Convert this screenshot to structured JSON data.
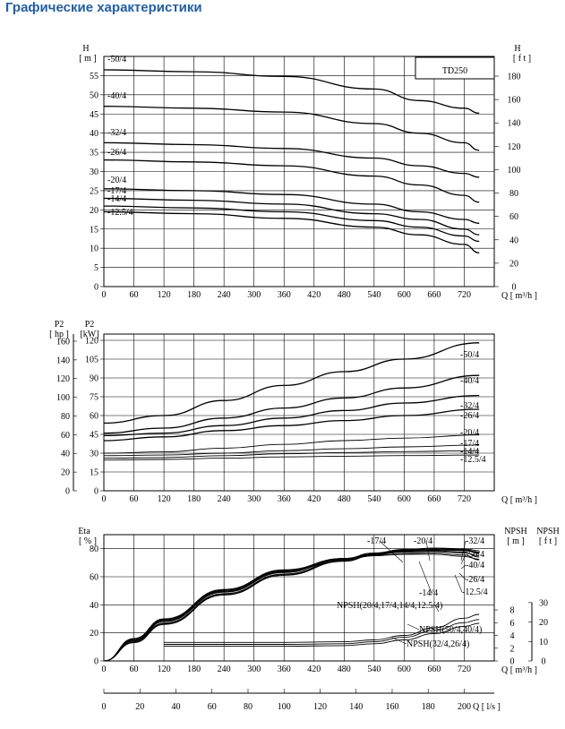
{
  "page": {
    "title": "Графические характеристики"
  },
  "chart_data": [
    {
      "type": "line",
      "model_label": "TD250",
      "x_axis": {
        "unit_label": "Q  [ m³/h ]",
        "range": [
          0,
          780
        ],
        "ticks": [
          0,
          60,
          120,
          180,
          240,
          300,
          360,
          420,
          480,
          540,
          600,
          660,
          720
        ]
      },
      "y_left": {
        "name": "H",
        "unit": "[ m ]",
        "range": [
          0,
          60
        ],
        "ticks": [
          0,
          5,
          10,
          15,
          20,
          25,
          30,
          35,
          40,
          45,
          50,
          55
        ]
      },
      "y_right": {
        "name": "H",
        "unit": "[ f t ]",
        "ticks": [
          0,
          20,
          40,
          60,
          80,
          100,
          120,
          140,
          160,
          180
        ]
      },
      "series": [
        {
          "name": "-50/4",
          "x": [
            0,
            180,
            360,
            540,
            630,
            720,
            750
          ],
          "y": [
            56.5,
            56.0,
            54.8,
            51.5,
            48.5,
            46.5,
            45.2
          ]
        },
        {
          "name": "-40/4",
          "x": [
            0,
            180,
            360,
            540,
            630,
            720,
            750
          ],
          "y": [
            47,
            46.5,
            45.5,
            42.5,
            40,
            37.5,
            35.5
          ]
        },
        {
          "name": "-32/4",
          "x": [
            0,
            180,
            360,
            540,
            630,
            720,
            750
          ],
          "y": [
            37.5,
            37,
            36,
            33.5,
            31.5,
            29.5,
            28.5
          ]
        },
        {
          "name": "-26/4",
          "x": [
            0,
            180,
            360,
            540,
            630,
            720,
            750
          ],
          "y": [
            33,
            32.5,
            31.5,
            28.8,
            26.5,
            23.8,
            22
          ]
        },
        {
          "name": "-20/4",
          "x": [
            0,
            180,
            360,
            540,
            630,
            720,
            750
          ],
          "y": [
            25.5,
            25,
            24,
            21.5,
            19.5,
            17.5,
            16.5
          ]
        },
        {
          "name": "-17/4",
          "x": [
            0,
            180,
            360,
            540,
            630,
            720,
            750
          ],
          "y": [
            23,
            22.5,
            21.5,
            19,
            17.5,
            15,
            13.5
          ]
        },
        {
          "name": "-14/4",
          "x": [
            0,
            180,
            360,
            540,
            630,
            720,
            750
          ],
          "y": [
            21,
            20.5,
            19.5,
            17.2,
            15.5,
            13.2,
            11.8
          ]
        },
        {
          "name": "-12.5/4",
          "x": [
            0,
            180,
            360,
            540,
            630,
            720,
            750
          ],
          "y": [
            19.5,
            19,
            17.8,
            15.5,
            13.5,
            11,
            8.8
          ]
        }
      ]
    },
    {
      "type": "line",
      "x_axis": {
        "unit_label": "Q  [ m³/h ]",
        "range": [
          0,
          780
        ],
        "ticks": [
          0,
          60,
          120,
          180,
          240,
          300,
          360,
          420,
          480,
          540,
          600,
          660,
          720
        ]
      },
      "y_left_outer": {
        "name": "P2",
        "unit": "[ hp ]",
        "ticks": [
          0,
          20,
          40,
          60,
          80,
          100,
          120,
          140,
          160
        ]
      },
      "y_left": {
        "name": "P2",
        "unit": "[kW]",
        "range": [
          0,
          125
        ],
        "ticks": [
          0,
          15,
          30,
          45,
          60,
          75,
          90,
          105,
          120
        ]
      },
      "series": [
        {
          "name": "-50/4",
          "x": [
            0,
            120,
            240,
            360,
            480,
            600,
            750
          ],
          "y": [
            54,
            60,
            72,
            84,
            95,
            105,
            118
          ]
        },
        {
          "name": "-40/4",
          "x": [
            0,
            120,
            240,
            360,
            480,
            600,
            750
          ],
          "y": [
            46,
            50,
            58,
            66,
            74,
            82,
            92
          ]
        },
        {
          "name": "-32/4",
          "x": [
            0,
            120,
            240,
            360,
            480,
            600,
            750
          ],
          "y": [
            44,
            46,
            52,
            58,
            64,
            70,
            76
          ]
        },
        {
          "name": "-26/4",
          "x": [
            0,
            120,
            240,
            360,
            480,
            600,
            750
          ],
          "y": [
            40,
            43,
            48,
            52,
            56,
            60,
            65
          ]
        },
        {
          "name": "-20/4",
          "x": [
            0,
            120,
            240,
            360,
            480,
            600,
            750
          ],
          "y": [
            30,
            31,
            34,
            37,
            40,
            42,
            44.5
          ]
        },
        {
          "name": "-17/4",
          "x": [
            0,
            120,
            240,
            360,
            480,
            600,
            750
          ],
          "y": [
            28,
            28.5,
            30,
            32,
            33.5,
            35,
            36.5
          ]
        },
        {
          "name": "-14/4",
          "x": [
            0,
            120,
            240,
            360,
            480,
            600,
            750
          ],
          "y": [
            26,
            26.5,
            28,
            29.5,
            30.5,
            31.2,
            32
          ]
        },
        {
          "name": "-12.5/4",
          "x": [
            0,
            120,
            240,
            360,
            480,
            600,
            750
          ],
          "y": [
            24.5,
            25,
            26,
            27,
            27.6,
            28.1,
            28.5
          ]
        }
      ]
    },
    {
      "type": "line",
      "x_axis": {
        "unit_label": "Q  [ m³/h ]",
        "range": [
          0,
          780
        ],
        "ticks": [
          0,
          60,
          120,
          180,
          240,
          300,
          360,
          420,
          480,
          540,
          600,
          660,
          720
        ]
      },
      "x_axis_secondary": {
        "unit_label": "Q  [ l/s ]",
        "ticks": [
          0,
          20,
          40,
          60,
          80,
          100,
          120,
          140,
          160,
          180,
          200
        ]
      },
      "y_left": {
        "name": "Eta",
        "unit": "[ % ]",
        "range": [
          0,
          90
        ],
        "ticks": [
          0,
          20,
          40,
          60,
          80
        ]
      },
      "y_right_inner": {
        "name": "NPSH",
        "unit": "[ m ]",
        "ticks": [
          0,
          2,
          4,
          6,
          8
        ]
      },
      "y_right_outer": {
        "name": "NPSH",
        "unit": "[ f t ]",
        "ticks": [
          0,
          10,
          20,
          30
        ]
      },
      "series": [
        {
          "name": "-17/4",
          "x": [
            0,
            60,
            120,
            240,
            360,
            480,
            540,
            600,
            660,
            720,
            750
          ],
          "y": [
            0,
            16,
            30,
            51,
            65,
            73,
            76,
            77.5,
            78,
            77,
            75
          ]
        },
        {
          "name": "-20/4",
          "x": [
            0,
            60,
            120,
            240,
            360,
            480,
            540,
            600,
            660,
            720,
            750
          ],
          "y": [
            0,
            15,
            29,
            50,
            64,
            73,
            76.5,
            78.5,
            79,
            78.5,
            77
          ]
        },
        {
          "name": "-32/4",
          "x": [
            0,
            60,
            120,
            240,
            360,
            480,
            540,
            600,
            660,
            720,
            750
          ],
          "y": [
            0,
            14,
            28,
            49,
            63,
            73,
            77,
            79.5,
            80.5,
            80,
            78.5
          ]
        },
        {
          "name": "-50/4",
          "x": [
            0,
            60,
            120,
            240,
            360,
            480,
            540,
            600,
            660,
            720,
            750
          ],
          "y": [
            0,
            13.5,
            27,
            48,
            62,
            72,
            76.5,
            79,
            80,
            79.5,
            77.5
          ]
        },
        {
          "name": "-40/4",
          "x": [
            0,
            60,
            120,
            240,
            360,
            480,
            540,
            600,
            660,
            720,
            750
          ],
          "y": [
            0,
            13,
            26.5,
            47.5,
            61.5,
            71.5,
            76,
            78.5,
            79.5,
            79,
            76.5
          ]
        },
        {
          "name": "-26/4",
          "x": [
            0,
            60,
            120,
            240,
            360,
            480,
            540,
            600,
            660,
            720,
            750
          ],
          "y": [
            0,
            13,
            26,
            47,
            61,
            71,
            75.5,
            78,
            78.5,
            77.5,
            74
          ]
        },
        {
          "name": "-14/4",
          "x": [
            0,
            60,
            120,
            240,
            360,
            480,
            540,
            600,
            660,
            720,
            750
          ],
          "y": [
            0,
            15.5,
            29.5,
            50.5,
            64.5,
            72.5,
            75,
            76,
            76,
            74.5,
            72.5
          ]
        },
        {
          "name": "-12.5/4",
          "x": [
            0,
            60,
            120,
            240,
            360,
            480,
            540,
            600,
            660,
            720,
            750
          ],
          "y": [
            0,
            14.5,
            28.5,
            49.5,
            63.5,
            72,
            75,
            76.5,
            77,
            75.5,
            72
          ]
        }
      ],
      "npsh_series": [
        {
          "name": "NPSH(20/4,17/4,14/4,12.5/4)",
          "x": [
            120,
            360,
            480,
            540,
            600,
            660,
            720,
            750
          ],
          "y_m": [
            2.9,
            2.9,
            3.0,
            3.3,
            4.0,
            5.2,
            6.7,
            7.3
          ]
        },
        {
          "name": "NPSH(50/4,40/4)",
          "x": [
            120,
            360,
            480,
            540,
            600,
            660,
            720,
            750
          ],
          "y_m": [
            2.6,
            2.6,
            2.7,
            3.0,
            3.7,
            4.8,
            6.0,
            6.5
          ]
        },
        {
          "name": "NPSH(32/4,26/4)",
          "x": [
            120,
            360,
            480,
            540,
            600,
            660,
            720,
            750
          ],
          "y_m": [
            2.3,
            2.3,
            2.4,
            2.7,
            3.3,
            4.3,
            5.4,
            5.9
          ]
        }
      ]
    }
  ]
}
